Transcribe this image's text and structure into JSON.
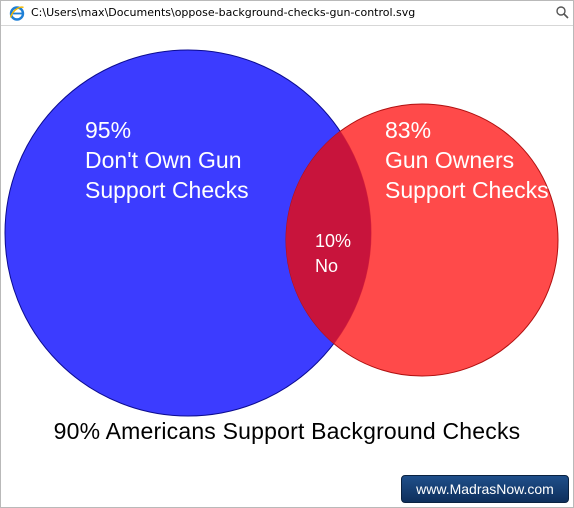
{
  "address_bar": {
    "path": "C:\\Users\\max\\Documents\\oppose-background-checks-gun-control.svg",
    "browser_icon": "internet-explorer-icon",
    "search_icon": "search-icon"
  },
  "venn": {
    "left_circle": {
      "percent": "95%",
      "line1": "Don't Own Gun",
      "line2": "Support Checks",
      "color": "#1a1aff"
    },
    "right_circle": {
      "percent": "83%",
      "line1": "Gun Owners",
      "line2": "Support Checks",
      "color": "#ff2a2a"
    },
    "overlap": {
      "percent": "10%",
      "label": "No",
      "color": "#c8143c"
    }
  },
  "caption": "90% Americans Support Background Checks",
  "watermark": "www.MadrasNow.com"
}
